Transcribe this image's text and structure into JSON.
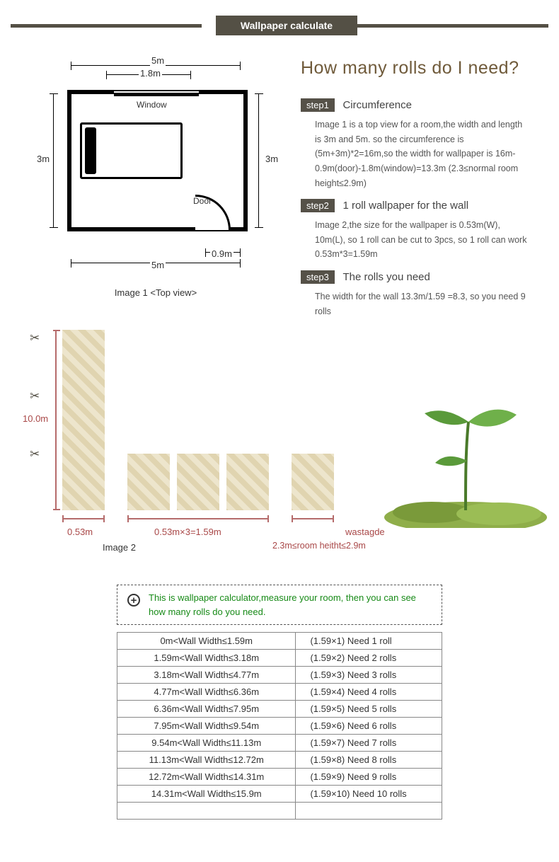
{
  "header": {
    "title": "Wallpaper calculate"
  },
  "main_question": "How many rolls do I need?",
  "floorplan": {
    "top_dim": "5m",
    "window_dim": "1.8m",
    "window_label": "Window",
    "left_dim": "3m",
    "right_dim": "3m",
    "bottom_dim": "5m",
    "door_dim": "0.9m",
    "door_label": "Door",
    "caption": "Image 1 <Top view>",
    "room_width_m": 5,
    "room_depth_m": 3,
    "window_w_m": 1.8,
    "door_w_m": 0.9,
    "line_color": "#000000"
  },
  "steps": [
    {
      "tag": "step1",
      "title": "Circumference",
      "body": "Image 1 is a top view for a room,the width and length is 3m and 5m. so the circumference is (5m+3m)*2=16m,so the width for wallpaper is 16m-0.9m(door)-1.8m(window)=13.3m (2.3≤normal room height≤2.9m)"
    },
    {
      "tag": "step2",
      "title": "1 roll wallpaper for the wall",
      "body": "Image 2,the size for the wallpaper is 0.53m(W), 10m(L), so 1 roll can be cut to 3pcs, so 1 roll can work 0.53m*3=1.59m"
    },
    {
      "tag": "step3",
      "title": "The rolls you need",
      "body": "The width for the wall 13.3m/1.59 =8.3, so you need 9 rolls"
    }
  ],
  "rolls": {
    "length_label": "10.0m",
    "width_label": "0.53m",
    "three_label": "0.53m×3=1.59m",
    "wastage_label": "wastagde",
    "height_rule": "2.3m≤room heitht≤2.9m",
    "caption": "Image 2",
    "roll_width_m": 0.53,
    "roll_length_m": 10.0,
    "pieces_per_roll": 3,
    "coverage_width_m": 1.59,
    "pattern_fill": "#e8dfc3",
    "pattern_dark": "#e0d4b0",
    "rule_color": "#b56b6b",
    "label_color": "#a94848"
  },
  "note": {
    "text": "This is wallpaper calculator,measure your room, then you can see how many rolls do you need.",
    "text_color": "#178a17"
  },
  "table": {
    "rows": [
      {
        "range": "0m<Wall Width≤1.59m",
        "calc": "(1.59×1)  Need 1 roll"
      },
      {
        "range": "1.59m<Wall Width≤3.18m",
        "calc": "(1.59×2)  Need 2 rolls"
      },
      {
        "range": "3.18m<Wall Width≤4.77m",
        "calc": "(1.59×3)  Need 3 rolls"
      },
      {
        "range": "4.77m<Wall Width≤6.36m",
        "calc": "(1.59×4)  Need 4 rolls"
      },
      {
        "range": "6.36m<Wall Width≤7.95m",
        "calc": "(1.59×5)  Need 5 rolls"
      },
      {
        "range": "7.95m<Wall Width≤9.54m",
        "calc": "(1.59×6)  Need 6 rolls"
      },
      {
        "range": "9.54m<Wall Width≤11.13m",
        "calc": "(1.59×7)  Need 7 rolls"
      },
      {
        "range": "11.13m<Wall Width≤12.72m",
        "calc": "(1.59×8)  Need 8 rolls"
      },
      {
        "range": "12.72m<Wall Width≤14.31m",
        "calc": "(1.59×9)  Need 9 rolls"
      },
      {
        "range": "14.31m<Wall Width≤15.9m",
        "calc": "(1.59×10)  Need 10 rolls"
      },
      {
        "range": "",
        "calc": ""
      }
    ],
    "border_color": "#888888"
  },
  "colors": {
    "header_bg": "#545045",
    "question_color": "#6f5a3a",
    "step_tag_bg": "#555148"
  }
}
